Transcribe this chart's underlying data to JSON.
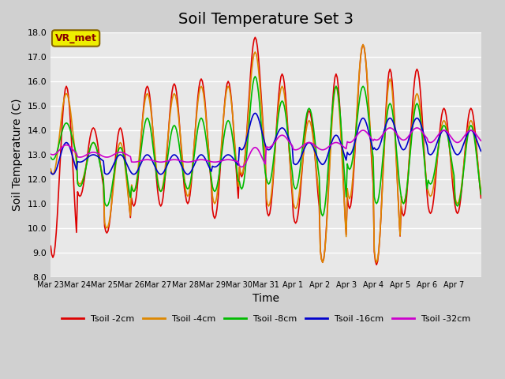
{
  "title": "Soil Temperature Set 3",
  "xlabel": "Time",
  "ylabel": "Soil Temperature (C)",
  "ylim": [
    8.0,
    18.0
  ],
  "yticks": [
    8.0,
    9.0,
    10.0,
    11.0,
    12.0,
    13.0,
    14.0,
    15.0,
    16.0,
    17.0,
    18.0
  ],
  "xtick_labels": [
    "Mar 23",
    "Mar 24",
    "Mar 25",
    "Mar 26",
    "Mar 27",
    "Mar 28",
    "Mar 29",
    "Mar 30",
    "Mar 31",
    "Apr 1",
    "Apr 2",
    "Apr 3",
    "Apr 4",
    "Apr 5",
    "Apr 6",
    "Apr 7"
  ],
  "series": [
    {
      "label": "Tsoil -2cm",
      "color": "#dd0000"
    },
    {
      "label": "Tsoil -4cm",
      "color": "#dd8800"
    },
    {
      "label": "Tsoil -8cm",
      "color": "#00bb00"
    },
    {
      "label": "Tsoil -16cm",
      "color": "#0000cc"
    },
    {
      "label": "Tsoil -32cm",
      "color": "#cc00cc"
    }
  ],
  "annotation_text": "VR_met",
  "annotation_bg": "#eeee00",
  "bg_color": "#e8e8e8",
  "grid_color": "#ffffff",
  "title_fontsize": 14,
  "axis_fontsize": 10,
  "tick_fontsize": 8,
  "peaks_2cm": [
    15.8,
    14.1,
    14.1,
    15.8,
    15.9,
    16.1,
    16.0,
    17.8,
    16.3,
    14.8,
    16.3,
    17.5,
    16.5,
    16.5,
    14.9,
    14.9
  ],
  "troughs_2cm": [
    8.8,
    11.3,
    9.8,
    10.9,
    10.9,
    11.0,
    10.4,
    12.1,
    10.5,
    10.2,
    8.6,
    10.8,
    8.5,
    10.5,
    10.6,
    10.6
  ],
  "peaks_4cm": [
    15.5,
    13.5,
    13.5,
    15.5,
    15.5,
    15.8,
    15.8,
    17.2,
    15.8,
    14.4,
    15.8,
    17.5,
    16.1,
    15.5,
    14.4,
    14.4
  ],
  "troughs_4cm": [
    12.2,
    11.8,
    10.0,
    11.5,
    11.5,
    11.3,
    11.0,
    12.2,
    10.9,
    10.8,
    8.6,
    11.2,
    8.6,
    11.0,
    11.3,
    11.0
  ],
  "peaks_8cm": [
    14.3,
    13.5,
    13.3,
    14.5,
    14.2,
    14.5,
    14.4,
    16.2,
    15.2,
    14.9,
    15.8,
    15.8,
    15.1,
    15.1,
    14.2,
    14.2
  ],
  "troughs_8cm": [
    12.8,
    11.7,
    10.9,
    11.5,
    11.5,
    11.6,
    11.5,
    11.6,
    11.8,
    11.6,
    10.5,
    12.4,
    11.0,
    11.0,
    11.8,
    10.9
  ],
  "peaks_16cm": [
    13.5,
    13.0,
    13.0,
    13.0,
    13.0,
    13.0,
    13.0,
    14.7,
    14.1,
    13.5,
    13.8,
    14.5,
    14.5,
    14.5,
    14.0,
    14.0
  ],
  "troughs_16cm": [
    12.2,
    12.7,
    12.2,
    12.2,
    12.2,
    12.2,
    12.5,
    13.2,
    13.2,
    12.6,
    12.6,
    13.0,
    13.2,
    13.2,
    13.0,
    13.0
  ],
  "peaks_32cm": [
    13.4,
    13.1,
    13.1,
    12.8,
    12.8,
    12.8,
    12.8,
    13.3,
    13.8,
    13.5,
    13.5,
    14.0,
    14.1,
    14.1,
    14.0,
    14.0
  ],
  "troughs_32cm": [
    13.0,
    12.9,
    12.9,
    12.7,
    12.7,
    12.7,
    12.7,
    12.5,
    13.3,
    13.2,
    13.2,
    13.5,
    13.6,
    13.6,
    13.5,
    13.5
  ]
}
